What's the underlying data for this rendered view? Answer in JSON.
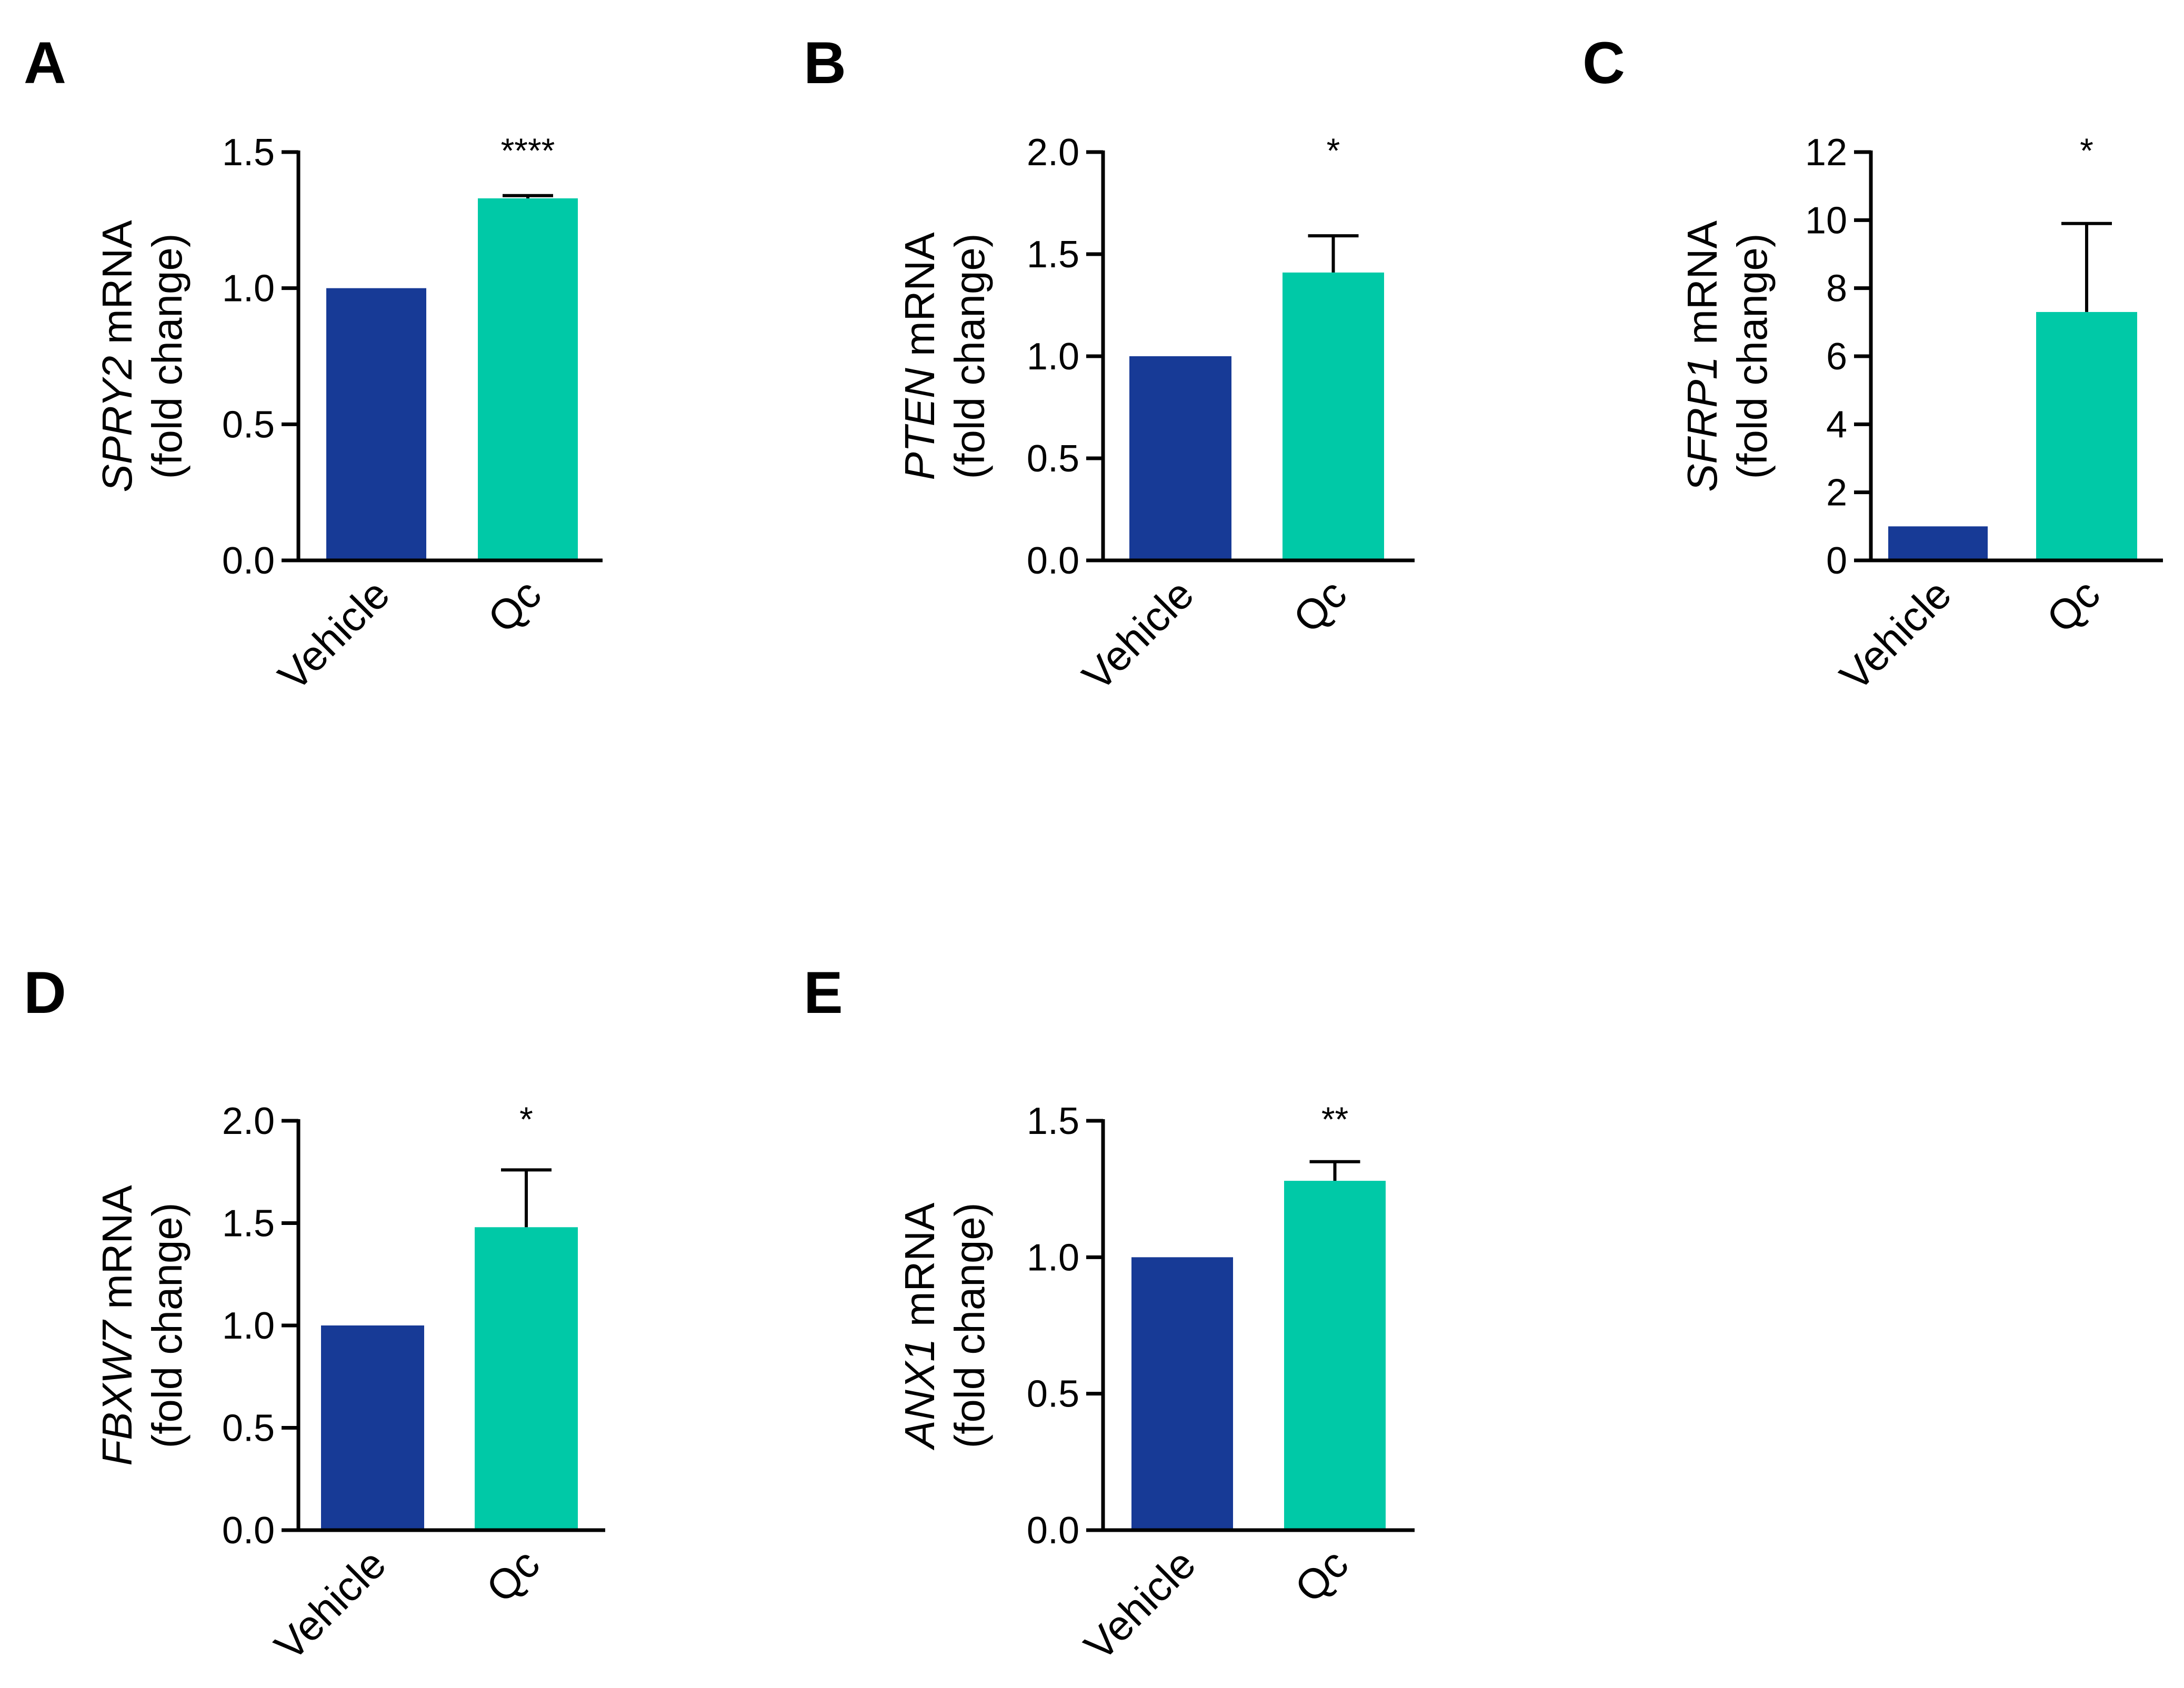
{
  "colors": {
    "vehicle": "#173A96",
    "qc": "#00C9A7",
    "axis": "#000000"
  },
  "chart_data": [
    {
      "panel": "A",
      "type": "bar",
      "categories": [
        "Vehicle",
        "Qc"
      ],
      "values": [
        1.0,
        1.33
      ],
      "errors": [
        0,
        0.01
      ],
      "significance": "****",
      "gene": "SPRY2",
      "ylabel_suffix": " mRNA",
      "ylabel_line2": "(fold change)",
      "ylim": [
        0,
        1.5
      ],
      "ticks": [
        0.0,
        0.5,
        1.0,
        1.5
      ],
      "tick_labels": [
        "0.0",
        "0.5",
        "1.0",
        "1.5"
      ]
    },
    {
      "panel": "B",
      "type": "bar",
      "categories": [
        "Vehicle",
        "Qc"
      ],
      "values": [
        1.0,
        1.41
      ],
      "errors": [
        0,
        0.18
      ],
      "significance": "*",
      "gene": "PTEN",
      "ylabel_suffix": " mRNA",
      "ylabel_line2": "(fold change)",
      "ylim": [
        0,
        2.0
      ],
      "ticks": [
        0.0,
        0.5,
        1.0,
        1.5,
        2.0
      ],
      "tick_labels": [
        "0.0",
        "0.5",
        "1.0",
        "1.5",
        "2.0"
      ]
    },
    {
      "panel": "C",
      "type": "bar",
      "categories": [
        "Vehicle",
        "Qc"
      ],
      "values": [
        1.0,
        7.3
      ],
      "errors": [
        0,
        2.6
      ],
      "significance": "*",
      "gene": "SFRP1",
      "ylabel_suffix": " mRNA",
      "ylabel_line2": "(fold change)",
      "ylim": [
        0,
        12
      ],
      "ticks": [
        0,
        2,
        4,
        6,
        8,
        10,
        12
      ],
      "tick_labels": [
        "0",
        "2",
        "4",
        "6",
        "8",
        "10",
        "12"
      ]
    },
    {
      "panel": "D",
      "type": "bar",
      "categories": [
        "Vehicle",
        "Qc"
      ],
      "values": [
        1.0,
        1.48
      ],
      "errors": [
        0,
        0.28
      ],
      "significance": "*",
      "gene": "FBXW7",
      "ylabel_suffix": " mRNA",
      "ylabel_line2": "(fold change)",
      "ylim": [
        0,
        2.0
      ],
      "ticks": [
        0.0,
        0.5,
        1.0,
        1.5,
        2.0
      ],
      "tick_labels": [
        "0.0",
        "0.5",
        "1.0",
        "1.5",
        "2.0"
      ]
    },
    {
      "panel": "E",
      "type": "bar",
      "categories": [
        "Vehicle",
        "Qc"
      ],
      "values": [
        1.0,
        1.28
      ],
      "errors": [
        0,
        0.07
      ],
      "significance": "**",
      "gene": "ANX1",
      "ylabel_suffix": " mRNA",
      "ylabel_line2": "(fold change)",
      "ylim": [
        0,
        1.5
      ],
      "ticks": [
        0.0,
        0.5,
        1.0,
        1.5
      ],
      "tick_labels": [
        "0.0",
        "0.5",
        "1.0",
        "1.5"
      ]
    }
  ]
}
